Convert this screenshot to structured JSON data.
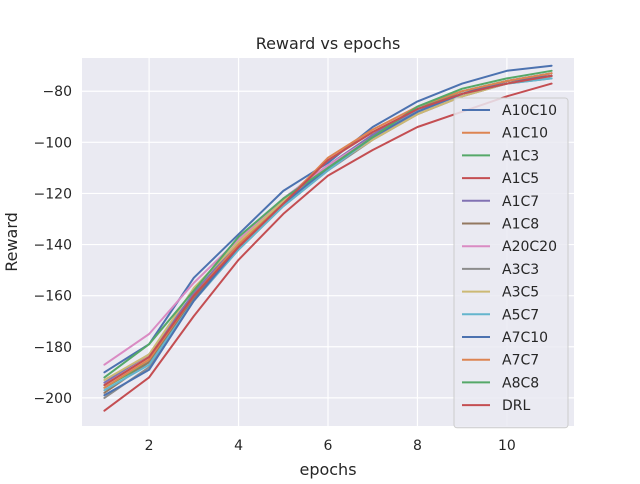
{
  "chart_data": {
    "type": "line",
    "title": "Reward vs epochs",
    "xlabel": "epochs",
    "ylabel": "Reward",
    "xlim": [
      0.5,
      11.5
    ],
    "ylim": [
      -211,
      -67
    ],
    "xticks": [
      2,
      4,
      6,
      8,
      10
    ],
    "xtick_labels": [
      "2",
      "4",
      "6",
      "8",
      "10"
    ],
    "yticks": [
      -200,
      -180,
      -160,
      -140,
      -120,
      -100,
      -80
    ],
    "ytick_labels": [
      "−200",
      "−180",
      "−160",
      "−140",
      "−120",
      "−100",
      "−80"
    ],
    "grid": true,
    "legend_position": "right",
    "style": {
      "background": "#eaeaf2",
      "grid_color": "#ffffff",
      "legend_bg": "#eaeaf2",
      "legend_border": "#cccccc"
    },
    "x": [
      1,
      2,
      3,
      4,
      5,
      6,
      7,
      8,
      9,
      10,
      11
    ],
    "series": [
      {
        "name": "A10C10",
        "color": "#4c72b0",
        "values": [
          -190,
          -179,
          -153,
          -136,
          -119,
          -108,
          -94,
          -84,
          -77,
          -72,
          -70
        ]
      },
      {
        "name": "A1C10",
        "color": "#dd8452",
        "values": [
          -195,
          -184,
          -160,
          -140,
          -123,
          -107,
          -96,
          -87,
          -81,
          -76,
          -73
        ]
      },
      {
        "name": "A1C3",
        "color": "#55a868",
        "values": [
          -196,
          -186,
          -160,
          -140,
          -124,
          -111,
          -97,
          -87,
          -80,
          -76,
          -74
        ]
      },
      {
        "name": "A1C5",
        "color": "#c44e52",
        "values": [
          -205,
          -192,
          -168,
          -146,
          -128,
          -113,
          -103,
          -94,
          -88,
          -82,
          -77
        ]
      },
      {
        "name": "A1C7",
        "color": "#8172b3",
        "values": [
          -194,
          -183,
          -159,
          -139,
          -122,
          -109,
          -97,
          -87,
          -81,
          -76,
          -73
        ]
      },
      {
        "name": "A1C8",
        "color": "#937860",
        "values": [
          -198,
          -186,
          -161,
          -141,
          -124,
          -110,
          -98,
          -88,
          -81,
          -77,
          -74
        ]
      },
      {
        "name": "A20C20",
        "color": "#da8bc3",
        "values": [
          -187,
          -175,
          -155,
          -138,
          -122,
          -109,
          -98,
          -89,
          -82,
          -77,
          -74
        ]
      },
      {
        "name": "A3C3",
        "color": "#8c8c8c",
        "values": [
          -200,
          -188,
          -162,
          -142,
          -125,
          -111,
          -99,
          -89,
          -82,
          -77,
          -75
        ]
      },
      {
        "name": "A3C5",
        "color": "#ccb974",
        "values": [
          -193,
          -183,
          -157,
          -139,
          -123,
          -110,
          -99,
          -89,
          -82,
          -77,
          -74
        ]
      },
      {
        "name": "A5C7",
        "color": "#64b5cd",
        "values": [
          -197,
          -187,
          -162,
          -142,
          -125,
          -111,
          -98,
          -88,
          -81,
          -77,
          -75
        ]
      },
      {
        "name": "A7C10",
        "color": "#4c72b0",
        "values": [
          -199,
          -189,
          -162,
          -141,
          -124,
          -110,
          -98,
          -88,
          -81,
          -76,
          -74
        ]
      },
      {
        "name": "A7C7",
        "color": "#dd8452",
        "values": [
          -196,
          -185,
          -160,
          -140,
          -124,
          -106,
          -95,
          -86,
          -80,
          -76,
          -73
        ]
      },
      {
        "name": "A8C8",
        "color": "#55a868",
        "values": [
          -192,
          -179,
          -158,
          -137,
          -122,
          -110,
          -98,
          -86,
          -79,
          -75,
          -72
        ]
      },
      {
        "name": "DRL",
        "color": "#c44e52",
        "values": [
          -195,
          -184,
          -160,
          -141,
          -124,
          -107,
          -96,
          -87,
          -81,
          -77,
          -74
        ]
      }
    ]
  }
}
